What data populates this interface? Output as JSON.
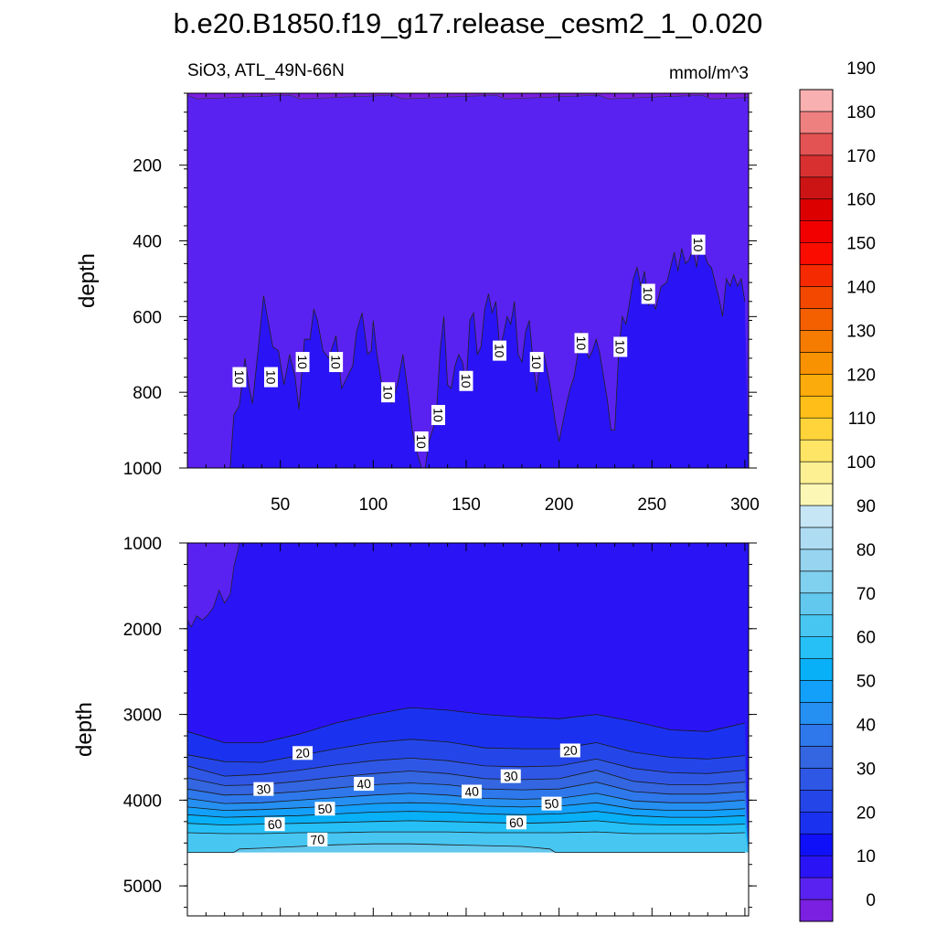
{
  "figure": {
    "title": "b.e20.B1850.f19_g17.release_cesm2_1_0.020",
    "subtitle_left": "SiO3, ATL_49N-66N",
    "subtitle_right": "mmol/m^3"
  },
  "colors": {
    "levels_bottom_to_top": [
      "#7b1fe0",
      "#5a22f0",
      "#2a14f5",
      "#1010f8",
      "#1a32f0",
      "#2446e8",
      "#2f57e6",
      "#3366e0",
      "#2e78ec",
      "#2590f2",
      "#12a0fa",
      "#08b0f8",
      "#26c0f6",
      "#48c6f2",
      "#62c8ee",
      "#80d0ef",
      "#96d4f0",
      "#aedcf2",
      "#c6e6f6",
      "#fdf7b6",
      "#fdf093",
      "#ffe565",
      "#ffd43a",
      "#ffbf18",
      "#fbab0c",
      "#f99200",
      "#f57c00",
      "#f46000",
      "#f24800",
      "#f52a00",
      "#fb0c00",
      "#f20000",
      "#dd0000",
      "#cc1414",
      "#d83030",
      "#e35353",
      "#ef8080",
      "#f9b0b0"
    ]
  },
  "chart_data": [
    {
      "type": "contour-area",
      "panel": "upper",
      "xlabel": "",
      "ylabel": "depth",
      "xlim": [
        0,
        302
      ],
      "ylim": [
        1000,
        10
      ],
      "xticks": [
        50,
        100,
        150,
        200,
        250,
        300
      ],
      "xtick_labels": [
        "50",
        "100",
        "150",
        "200",
        "250",
        "300"
      ],
      "yticks": [
        200,
        400,
        600,
        800,
        1000
      ],
      "ytick_labels": [
        "200",
        "400",
        "600",
        "800",
        "1000"
      ],
      "background_fill_level": "0-5",
      "surface_boundary_depth": 20,
      "contour_10_boundary": {
        "x": [
          0,
          23,
          25,
          28,
          31,
          33,
          35,
          38,
          41,
          43,
          46,
          49,
          52,
          55,
          58,
          60,
          63,
          66,
          68,
          70,
          73,
          76,
          80,
          83,
          86,
          89,
          91,
          94,
          97,
          99,
          100,
          102,
          104,
          106,
          108,
          110,
          113,
          116,
          119,
          121,
          123,
          126,
          128,
          130,
          132,
          134,
          136,
          138,
          140,
          142,
          144,
          146,
          148,
          150,
          152,
          154,
          156,
          158,
          160,
          162,
          164,
          166,
          168,
          170,
          172,
          174,
          176,
          178,
          180,
          182,
          184,
          186,
          188,
          190,
          192,
          195,
          198,
          200,
          202,
          204,
          206,
          208,
          210,
          212,
          214,
          216,
          218,
          220,
          222,
          224,
          226,
          228,
          230,
          232,
          234,
          236,
          238,
          240,
          242,
          244,
          246,
          248,
          250,
          252,
          255,
          258,
          260,
          262,
          264,
          266,
          268,
          270,
          272,
          274,
          276,
          278,
          280,
          282,
          284,
          286,
          288,
          290,
          292,
          294,
          296,
          298,
          300
        ],
        "depth": [
          1000,
          1000,
          860,
          835,
          710,
          780,
          830,
          690,
          545,
          600,
          680,
          690,
          780,
          700,
          760,
          845,
          660,
          660,
          580,
          610,
          690,
          710,
          650,
          790,
          760,
          730,
          640,
          590,
          700,
          690,
          610,
          700,
          760,
          820,
          780,
          830,
          780,
          700,
          810,
          900,
          950,
          1000,
          1000,
          930,
          900,
          860,
          690,
          600,
          780,
          790,
          730,
          700,
          720,
          780,
          610,
          590,
          700,
          680,
          580,
          540,
          590,
          560,
          680,
          650,
          600,
          620,
          560,
          700,
          720,
          640,
          610,
          720,
          800,
          700,
          700,
          780,
          880,
          930,
          880,
          830,
          790,
          760,
          700,
          640,
          680,
          710,
          690,
          660,
          700,
          760,
          820,
          900,
          900,
          700,
          600,
          620,
          560,
          500,
          470,
          520,
          480,
          570,
          560,
          580,
          520,
          510,
          470,
          430,
          480,
          420,
          460,
          450,
          420,
          470,
          400,
          430,
          460,
          470,
          510,
          550,
          600,
          500,
          520,
          490,
          520,
          500,
          560
        ]
      },
      "contour_labels": [
        {
          "x": 28,
          "depth": 760,
          "text": "10"
        },
        {
          "x": 45,
          "depth": 760,
          "text": "10"
        },
        {
          "x": 62,
          "depth": 720,
          "text": "10"
        },
        {
          "x": 80,
          "depth": 720,
          "text": "10"
        },
        {
          "x": 108,
          "depth": 800,
          "text": "10"
        },
        {
          "x": 135,
          "depth": 860,
          "text": "10"
        },
        {
          "x": 126,
          "depth": 930,
          "text": "10"
        },
        {
          "x": 150,
          "depth": 770,
          "text": "10"
        },
        {
          "x": 168,
          "depth": 690,
          "text": "10"
        },
        {
          "x": 188,
          "depth": 720,
          "text": "10"
        },
        {
          "x": 212,
          "depth": 670,
          "text": "10"
        },
        {
          "x": 233,
          "depth": 680,
          "text": "10"
        },
        {
          "x": 248,
          "depth": 540,
          "text": "10"
        },
        {
          "x": 275,
          "depth": 410,
          "text": "10"
        }
      ]
    },
    {
      "type": "contour-area",
      "panel": "lower",
      "xlabel": "",
      "ylabel": "depth",
      "xlim": [
        0,
        302
      ],
      "ylim": [
        5350,
        1000
      ],
      "xticks": [
        50,
        100,
        150,
        200,
        250,
        300
      ],
      "xtick_labels": [
        "",
        "",
        "",
        "",
        "",
        ""
      ],
      "yticks": [
        1000,
        2000,
        3000,
        4000,
        5000
      ],
      "ytick_labels": [
        "1000",
        "2000",
        "3000",
        "4000",
        "5000"
      ],
      "missing_below_depth": 4610,
      "lobe_5_to_10": {
        "x": [
          0,
          2,
          5,
          8,
          11,
          14,
          17,
          20,
          23,
          25,
          27,
          28
        ],
        "depth": [
          1900,
          1980,
          1850,
          1900,
          1840,
          1750,
          1550,
          1700,
          1600,
          1280,
          1100,
          1000
        ]
      },
      "contour_lines": [
        {
          "level": 20,
          "x": [
            0,
            20,
            40,
            60,
            80,
            100,
            120,
            140,
            160,
            180,
            200,
            220,
            240,
            260,
            280,
            300
          ],
          "depth": [
            3200,
            3330,
            3330,
            3230,
            3100,
            3000,
            2920,
            2950,
            3000,
            3030,
            3050,
            3000,
            3080,
            3180,
            3200,
            3100
          ]
        },
        {
          "level": 25,
          "x": [
            0,
            20,
            40,
            60,
            80,
            100,
            120,
            140,
            160,
            180,
            200,
            220,
            240,
            260,
            280,
            300
          ],
          "depth": [
            3470,
            3550,
            3560,
            3480,
            3400,
            3330,
            3290,
            3320,
            3390,
            3400,
            3400,
            3330,
            3440,
            3500,
            3520,
            3480
          ]
        },
        {
          "level": 30,
          "x": [
            0,
            20,
            40,
            60,
            80,
            100,
            120,
            140,
            160,
            180,
            200,
            220,
            240,
            260,
            280,
            300
          ],
          "depth": [
            3600,
            3720,
            3700,
            3650,
            3590,
            3540,
            3510,
            3540,
            3600,
            3610,
            3600,
            3520,
            3630,
            3680,
            3690,
            3650
          ]
        },
        {
          "level": 35,
          "x": [
            0,
            20,
            40,
            60,
            80,
            100,
            120,
            140,
            160,
            180,
            200,
            220,
            240,
            260,
            280,
            300
          ],
          "depth": [
            3740,
            3830,
            3820,
            3780,
            3730,
            3690,
            3660,
            3690,
            3750,
            3760,
            3750,
            3650,
            3780,
            3820,
            3820,
            3790
          ]
        },
        {
          "level": 40,
          "x": [
            0,
            20,
            40,
            60,
            80,
            100,
            120,
            140,
            160,
            180,
            200,
            220,
            240,
            260,
            280,
            300
          ],
          "depth": [
            3870,
            3940,
            3930,
            3900,
            3860,
            3820,
            3800,
            3820,
            3870,
            3880,
            3870,
            3790,
            3900,
            3930,
            3930,
            3900
          ]
        },
        {
          "level": 45,
          "x": [
            0,
            20,
            40,
            60,
            80,
            100,
            120,
            140,
            160,
            180,
            200,
            220,
            240,
            260,
            280,
            300
          ],
          "depth": [
            3980,
            4040,
            4030,
            4000,
            3970,
            3940,
            3920,
            3940,
            3980,
            3990,
            3980,
            3920,
            4010,
            4030,
            4030,
            4000
          ]
        },
        {
          "level": 50,
          "x": [
            0,
            20,
            40,
            60,
            80,
            100,
            120,
            140,
            160,
            180,
            200,
            220,
            240,
            260,
            280,
            300
          ],
          "depth": [
            4080,
            4120,
            4110,
            4090,
            4070,
            4040,
            4030,
            4040,
            4070,
            4080,
            4070,
            4030,
            4100,
            4120,
            4120,
            4100
          ]
        },
        {
          "level": 55,
          "x": [
            0,
            20,
            40,
            60,
            80,
            100,
            120,
            140,
            160,
            180,
            200,
            220,
            240,
            260,
            280,
            300
          ],
          "depth": [
            4170,
            4200,
            4190,
            4180,
            4160,
            4140,
            4130,
            4140,
            4160,
            4170,
            4160,
            4130,
            4180,
            4200,
            4200,
            4180
          ]
        },
        {
          "level": 60,
          "x": [
            0,
            20,
            40,
            60,
            80,
            100,
            120,
            140,
            160,
            180,
            200,
            220,
            240,
            260,
            280,
            300
          ],
          "depth": [
            4270,
            4290,
            4280,
            4270,
            4260,
            4250,
            4240,
            4250,
            4260,
            4270,
            4260,
            4240,
            4280,
            4290,
            4290,
            4280
          ]
        },
        {
          "level": 65,
          "x": [
            0,
            20,
            40,
            60,
            80,
            100,
            120,
            140,
            160,
            180,
            200,
            220,
            240,
            260,
            280,
            300
          ],
          "depth": [
            4380,
            4390,
            4390,
            4380,
            4380,
            4370,
            4370,
            4370,
            4380,
            4380,
            4380,
            4370,
            4390,
            4390,
            4390,
            4380
          ]
        },
        {
          "level": 70,
          "x": [
            0,
            15,
            25,
            28,
            40,
            60,
            80,
            100,
            120,
            140,
            160,
            180,
            195,
            198,
            210,
            230,
            240,
            300
          ],
          "depth": [
            4610,
            4610,
            4610,
            4570,
            4560,
            4540,
            4520,
            4510,
            4510,
            4520,
            4530,
            4540,
            4570,
            4610,
            4610,
            4610,
            4610,
            4610
          ]
        }
      ],
      "contour_labels": [
        {
          "x": 62,
          "depth": 3450,
          "text": "20"
        },
        {
          "x": 206,
          "depth": 3420,
          "text": "20"
        },
        {
          "x": 41,
          "depth": 3870,
          "text": "30"
        },
        {
          "x": 174,
          "depth": 3720,
          "text": "30"
        },
        {
          "x": 95,
          "depth": 3810,
          "text": "40"
        },
        {
          "x": 153,
          "depth": 3900,
          "text": "40"
        },
        {
          "x": 74,
          "depth": 4100,
          "text": "50"
        },
        {
          "x": 196,
          "depth": 4040,
          "text": "50"
        },
        {
          "x": 47,
          "depth": 4280,
          "text": "60"
        },
        {
          "x": 177,
          "depth": 4260,
          "text": "60"
        },
        {
          "x": 70,
          "depth": 4460,
          "text": "70"
        }
      ]
    }
  ],
  "colorbar": {
    "labels": [
      "0",
      "10",
      "20",
      "30",
      "40",
      "50",
      "60",
      "70",
      "80",
      "90",
      "100",
      "110",
      "120",
      "130",
      "140",
      "150",
      "160",
      "170",
      "180",
      "190"
    ]
  }
}
